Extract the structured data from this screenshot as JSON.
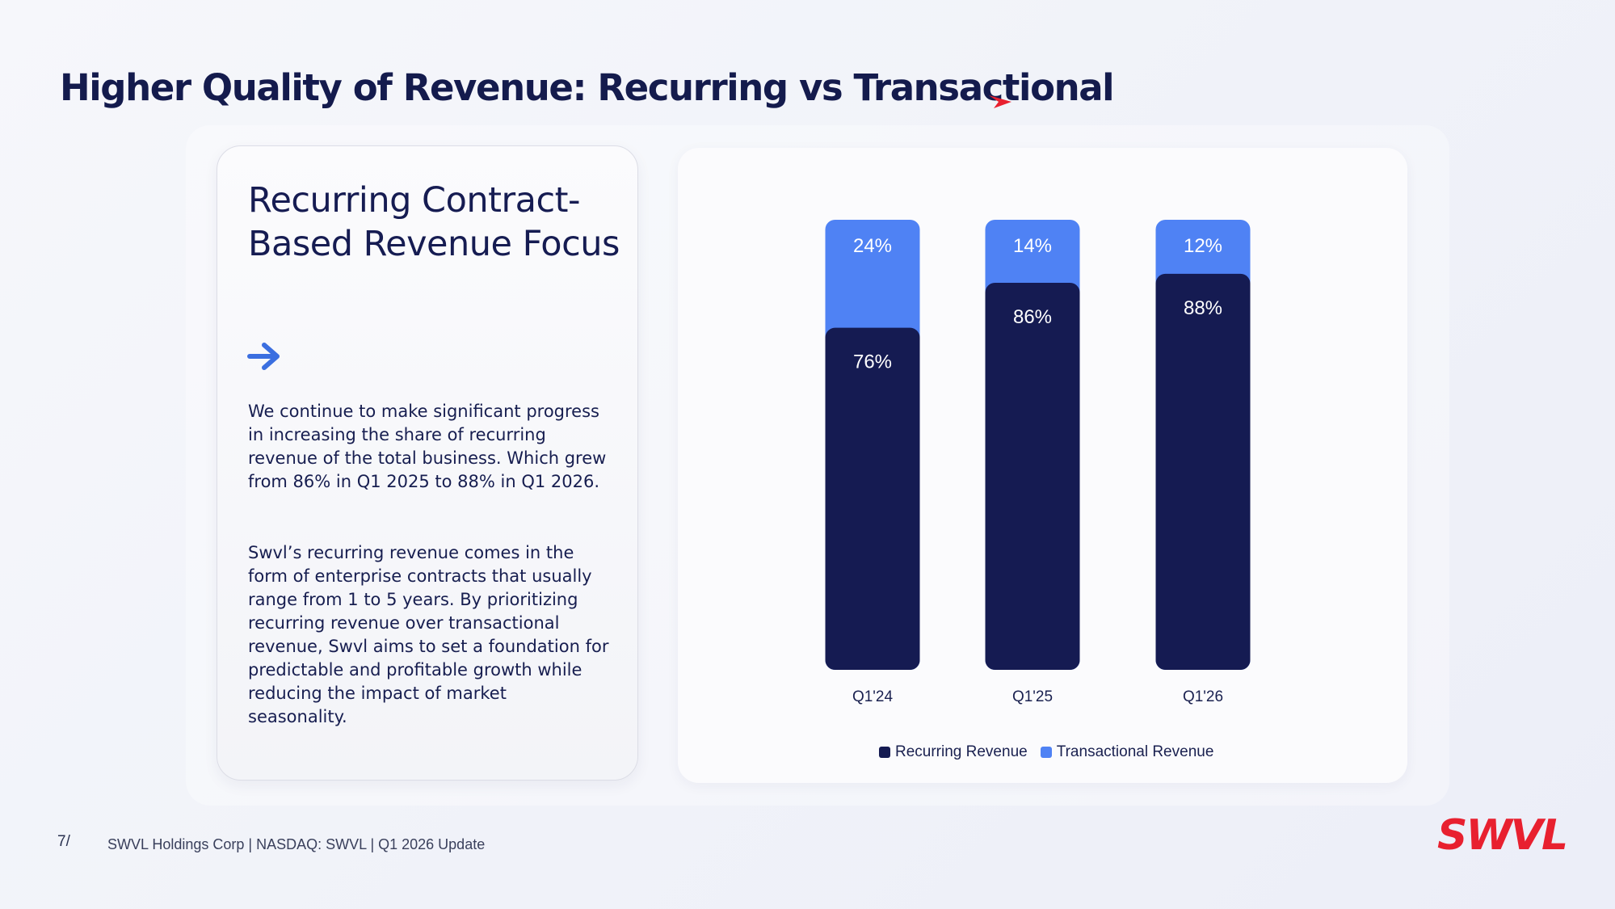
{
  "title": "Higher Quality of Revenue: Recurring vs Transactional",
  "card": {
    "heading": "Recurring Contract-Based Revenue Focus",
    "paragraph1": "We continue to make significant progress in increasing the share of recurring revenue of the total business. Which grew from 86% in Q1 2025 to 88% in Q1 2026.",
    "paragraph2": "Swvl’s recurring revenue comes in the form of enterprise contracts that usually range from 1 to 5 years. By prioritizing recurring revenue over transactional revenue, Swvl aims to set a foundation for predictable and profitable growth while reducing the impact of market seasonality."
  },
  "footer": {
    "page_number": "7/",
    "text": "SWVL Holdings Corp  |  NASDAQ: SWVL  |  Q1 2026 Update",
    "logo": "SWVL"
  },
  "colors": {
    "recurring": "#151b52",
    "transactional": "#4f82f4",
    "brand_red": "#e8202f"
  },
  "chart_data": {
    "type": "bar",
    "stacked": true,
    "categories": [
      "Q1'24",
      "Q1'25",
      "Q1'26"
    ],
    "series": [
      {
        "name": "Recurring Revenue",
        "values": [
          76,
          86,
          88
        ],
        "labels": [
          "76%",
          "86%",
          "88%"
        ]
      },
      {
        "name": "Transactional Revenue",
        "values": [
          24,
          14,
          12
        ],
        "labels": [
          "24%",
          "14%",
          "12%"
        ]
      }
    ],
    "ylim": [
      0,
      100
    ],
    "grid": false,
    "legend": "bottom-center"
  }
}
